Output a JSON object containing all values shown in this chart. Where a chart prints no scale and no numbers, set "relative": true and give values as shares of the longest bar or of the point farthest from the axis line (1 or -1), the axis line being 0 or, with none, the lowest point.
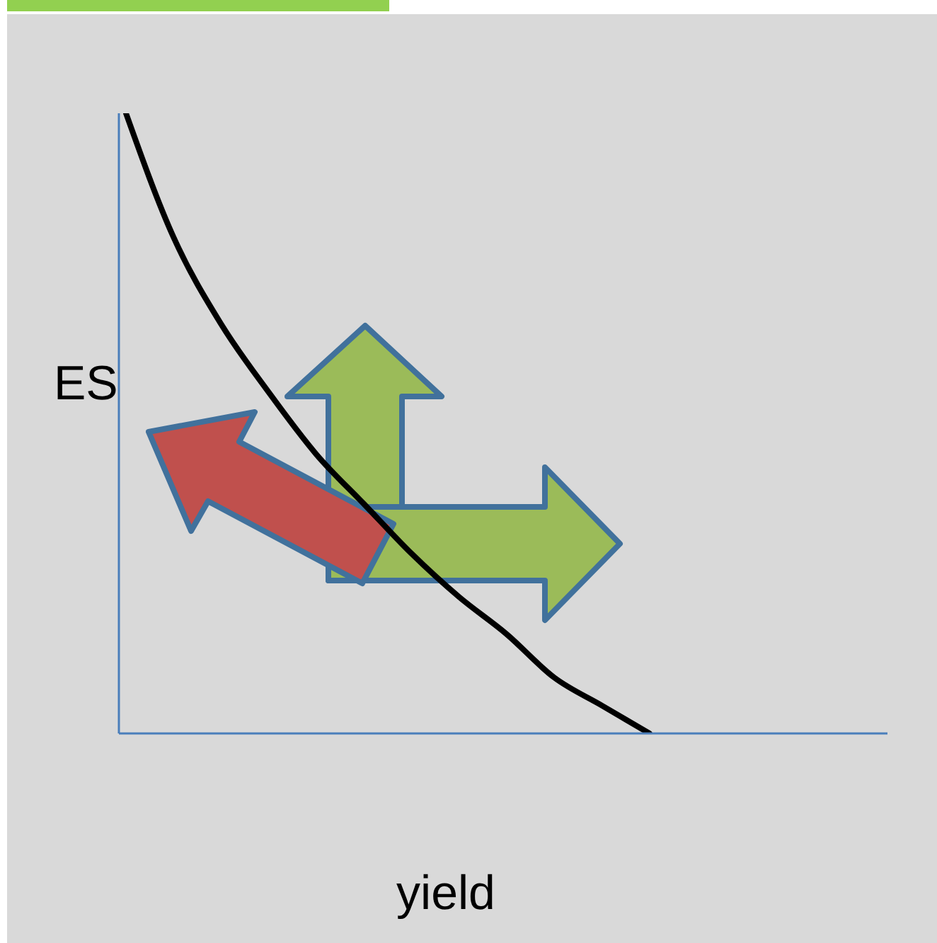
{
  "chart_data": {
    "type": "line",
    "relative": true,
    "xlabel": "yield",
    "ylabel": "ES",
    "categories": [
      null,
      null,
      null,
      null,
      null,
      null,
      null,
      null,
      null,
      null,
      null,
      null,
      null,
      null,
      null,
      null,
      null
    ],
    "series": [
      {
        "color": "#000000",
        "values": [
          1,
          0.8,
          0.66,
          0.55,
          0.45,
          0.37,
          0.29,
          0.22,
          0.16,
          0.09,
          0.045,
          0,
          null,
          null,
          null,
          null,
          null
        ]
      }
    ],
    "marker": "none",
    "line_style": "solid",
    "grid": false
  }
}
